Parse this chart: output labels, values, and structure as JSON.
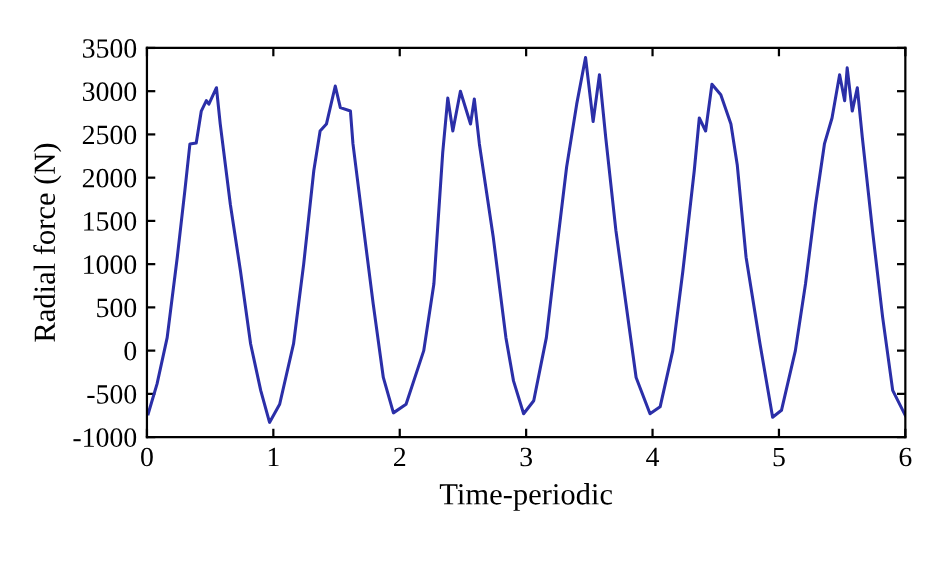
{
  "chart_data": {
    "type": "line",
    "xlabel": "Time-periodic",
    "ylabel": "Radial force (N)",
    "x": [
      0.01,
      0.08,
      0.16,
      0.24,
      0.3,
      0.34,
      0.39,
      0.43,
      0.47,
      0.49,
      0.55,
      0.58,
      0.66,
      0.74,
      0.82,
      0.9,
      0.97,
      1.05,
      1.16,
      1.24,
      1.32,
      1.37,
      1.42,
      1.49,
      1.53,
      1.61,
      1.63,
      1.71,
      1.79,
      1.87,
      1.95,
      2.05,
      2.19,
      2.27,
      2.34,
      2.38,
      2.42,
      2.48,
      2.56,
      2.59,
      2.63,
      2.74,
      2.84,
      2.9,
      2.98,
      3.06,
      3.16,
      3.24,
      3.32,
      3.4,
      3.47,
      3.53,
      3.58,
      3.63,
      3.71,
      3.79,
      3.87,
      3.98,
      4.06,
      4.16,
      4.24,
      4.33,
      4.37,
      4.42,
      4.47,
      4.54,
      4.62,
      4.67,
      4.74,
      4.85,
      4.95,
      5.02,
      5.13,
      5.21,
      5.29,
      5.36,
      5.42,
      5.48,
      5.52,
      5.54,
      5.58,
      5.62,
      5.66,
      5.74,
      5.82,
      5.9,
      6.0
    ],
    "series": [
      {
        "color": "#2b2fa8",
        "values": [
          -730,
          -385,
          150,
          1080,
          1850,
          2390,
          2400,
          2770,
          2890,
          2850,
          3040,
          2620,
          1690,
          920,
          80,
          -460,
          -830,
          -620,
          80,
          1000,
          2080,
          2540,
          2620,
          3060,
          2810,
          2770,
          2390,
          1460,
          540,
          -310,
          -720,
          -620,
          0,
          770,
          2290,
          2920,
          2540,
          3000,
          2620,
          2910,
          2390,
          1310,
          150,
          -350,
          -730,
          -580,
          150,
          1150,
          2120,
          2850,
          3390,
          2650,
          3190,
          2460,
          1390,
          540,
          -310,
          -730,
          -650,
          0,
          920,
          2080,
          2690,
          2540,
          3080,
          2960,
          2620,
          2150,
          1080,
          80,
          -770,
          -690,
          0,
          770,
          1690,
          2390,
          2690,
          3190,
          2890,
          3270,
          2770,
          3040,
          2460,
          1390,
          390,
          -460,
          -750
        ]
      }
    ],
    "xlim": [
      0,
      6
    ],
    "xticks": [
      0,
      1,
      2,
      3,
      4,
      5,
      6
    ],
    "ylim": [
      -1000,
      3500
    ],
    "yticks": [
      -1000,
      -500,
      0,
      500,
      1000,
      1500,
      2000,
      2500,
      3000,
      3500
    ],
    "grid": false,
    "legend": false,
    "marker": "none",
    "line_style": "solid"
  }
}
